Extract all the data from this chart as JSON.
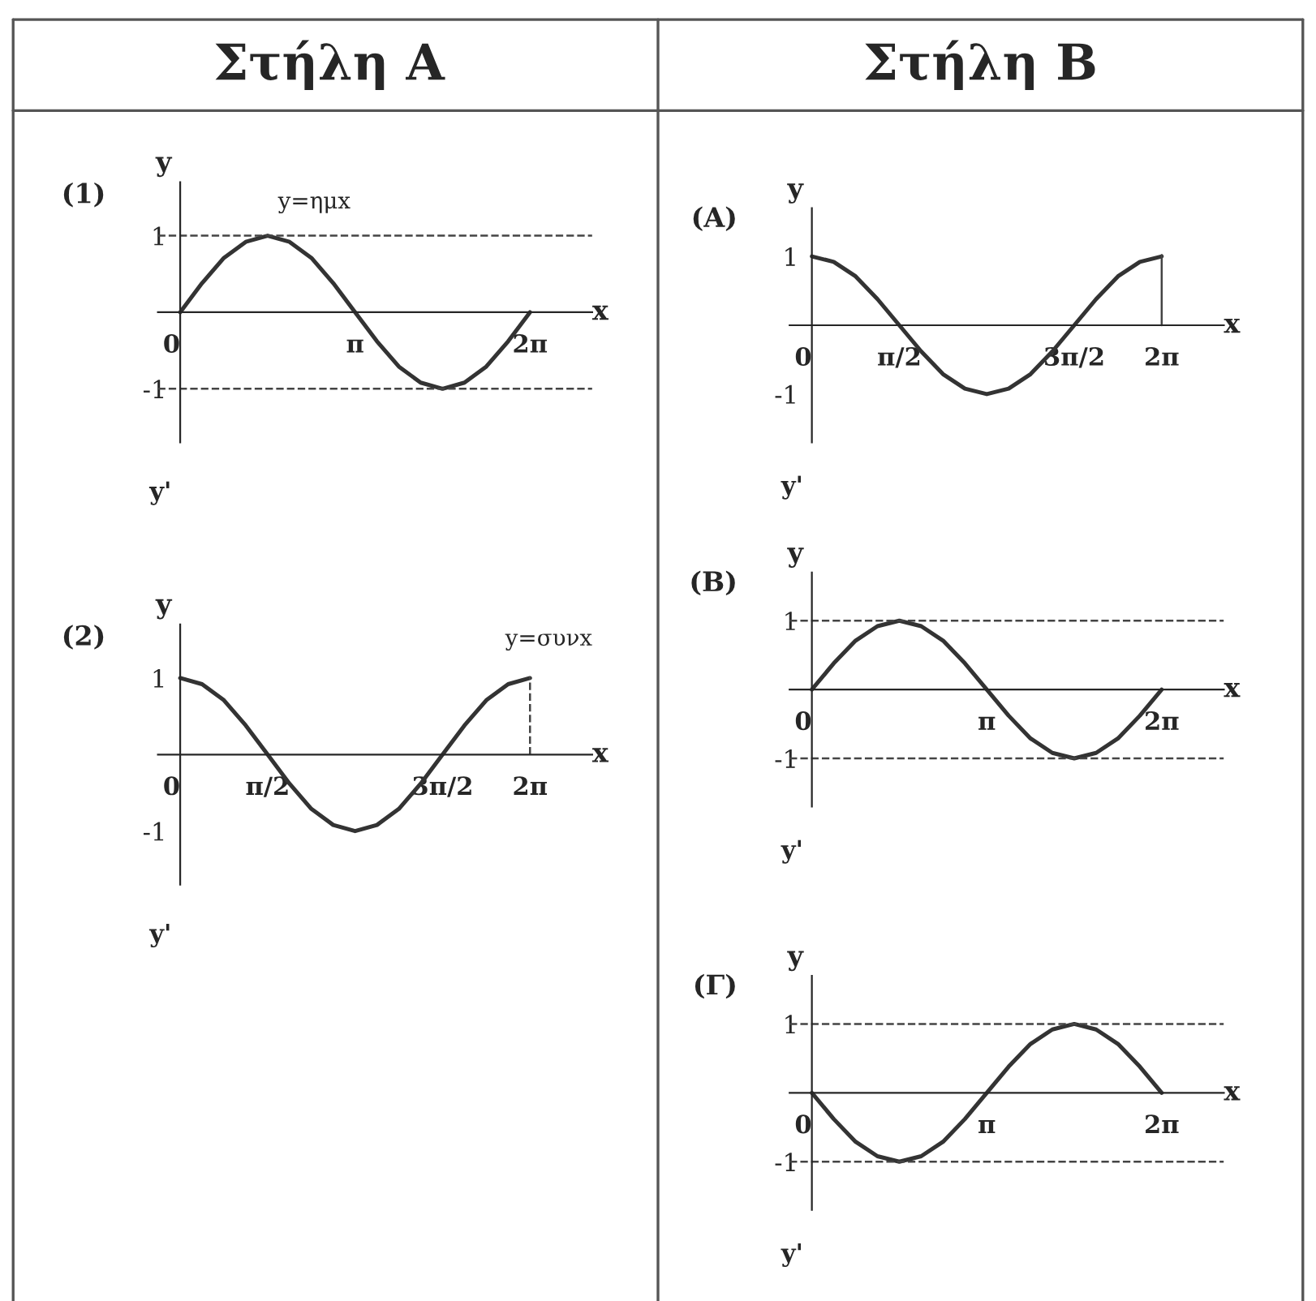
{
  "chart_data": [
    {
      "type": "line",
      "title": "Στήλη Α",
      "subtitle": "(1)",
      "xlabel": "x",
      "ylabel": "y",
      "annotations": [
        "y=ημx",
        "y'"
      ],
      "x": [
        0,
        0.3927,
        0.7854,
        1.1781,
        1.5708,
        1.9635,
        2.3562,
        2.7489,
        3.1416,
        3.5343,
        3.927,
        4.3197,
        4.7124,
        5.1051,
        5.4978,
        5.8905,
        6.2832
      ],
      "series": [
        {
          "color": "#333333",
          "values": [
            0,
            0.38,
            0.71,
            0.92,
            1,
            0.92,
            0.71,
            0.38,
            0,
            -0.38,
            -0.71,
            -0.92,
            -1,
            -0.92,
            -0.71,
            -0.38,
            0
          ]
        }
      ],
      "xlim": [
        -0.4,
        7.4
      ],
      "ylim": [
        -1.7,
        1.7
      ],
      "xticks": [
        {
          "value": 0,
          "label": "0"
        },
        {
          "value": 3.1416,
          "label": "π"
        },
        {
          "value": 6.2832,
          "label": "2π"
        }
      ],
      "yticks": [
        -1,
        1
      ],
      "ref_lines": [
        {
          "axis": "y",
          "value": 1,
          "line_style": "dashed"
        },
        {
          "axis": "y",
          "value": -1,
          "line_style": "dashed"
        }
      ]
    },
    {
      "type": "line",
      "subtitle": "(2)",
      "xlabel": "x",
      "ylabel": "y",
      "annotations": [
        "y=συνx",
        "y'"
      ],
      "x": [
        0,
        0.3927,
        0.7854,
        1.1781,
        1.5708,
        1.9635,
        2.3562,
        2.7489,
        3.1416,
        3.5343,
        3.927,
        4.3197,
        4.7124,
        5.1051,
        5.4978,
        5.8905,
        6.2832
      ],
      "series": [
        {
          "color": "#333333",
          "values": [
            1,
            0.92,
            0.71,
            0.38,
            0,
            -0.38,
            -0.71,
            -0.92,
            -1,
            -0.92,
            -0.71,
            -0.38,
            0,
            0.38,
            0.71,
            0.92,
            1
          ]
        }
      ],
      "xlim": [
        -0.4,
        7.4
      ],
      "ylim": [
        -1.7,
        1.7
      ],
      "xticks": [
        {
          "value": 0,
          "label": "0"
        },
        {
          "value": 1.5708,
          "label": "π/2"
        },
        {
          "value": 4.7124,
          "label": "3π/2"
        },
        {
          "value": 6.2832,
          "label": "2π"
        }
      ],
      "yticks": [
        -1,
        1
      ],
      "ref_lines": [
        {
          "axis": "x",
          "value": 6.2832,
          "line_style": "dashed"
        }
      ]
    },
    {
      "type": "line",
      "title": "Στήλη Β",
      "subtitle": "(A)",
      "xlabel": "x",
      "ylabel": "y",
      "annotations": [
        "y'"
      ],
      "x": [
        0,
        0.3927,
        0.7854,
        1.1781,
        1.5708,
        1.9635,
        2.3562,
        2.7489,
        3.1416,
        3.5343,
        3.927,
        4.3197,
        4.7124,
        5.1051,
        5.4978,
        5.8905,
        6.2832
      ],
      "series": [
        {
          "color": "#333333",
          "values": [
            1,
            0.92,
            0.71,
            0.38,
            0,
            -0.38,
            -0.71,
            -0.92,
            -1,
            -0.92,
            -0.71,
            -0.38,
            0,
            0.38,
            0.71,
            0.92,
            1
          ]
        }
      ],
      "xlim": [
        -0.4,
        7.4
      ],
      "ylim": [
        -1.7,
        1.7
      ],
      "xticks": [
        {
          "value": 0,
          "label": "0"
        },
        {
          "value": 1.5708,
          "label": "π/2"
        },
        {
          "value": 4.7124,
          "label": "3π/2"
        },
        {
          "value": 6.2832,
          "label": "2π"
        }
      ],
      "yticks": [
        -1,
        1
      ],
      "ref_lines": [
        {
          "axis": "x",
          "value": 6.2832,
          "line_style": "solid"
        }
      ]
    },
    {
      "type": "line",
      "subtitle": "(B)",
      "xlabel": "x",
      "ylabel": "y",
      "annotations": [
        "y'"
      ],
      "x": [
        0,
        0.3927,
        0.7854,
        1.1781,
        1.5708,
        1.9635,
        2.3562,
        2.7489,
        3.1416,
        3.5343,
        3.927,
        4.3197,
        4.7124,
        5.1051,
        5.4978,
        5.8905,
        6.2832
      ],
      "series": [
        {
          "color": "#333333",
          "values": [
            0,
            0.38,
            0.71,
            0.92,
            1,
            0.92,
            0.71,
            0.38,
            0,
            -0.38,
            -0.71,
            -0.92,
            -1,
            -0.92,
            -0.71,
            -0.38,
            0
          ]
        }
      ],
      "xlim": [
        -0.4,
        7.4
      ],
      "ylim": [
        -1.7,
        1.7
      ],
      "xticks": [
        {
          "value": 0,
          "label": "0"
        },
        {
          "value": 3.1416,
          "label": "π"
        },
        {
          "value": 6.2832,
          "label": "2π"
        }
      ],
      "yticks": [
        -1,
        1
      ],
      "ref_lines": [
        {
          "axis": "y",
          "value": 1,
          "line_style": "dashed"
        },
        {
          "axis": "y",
          "value": -1,
          "line_style": "dashed"
        }
      ]
    },
    {
      "type": "line",
      "subtitle": "(Γ)",
      "xlabel": "x",
      "ylabel": "y",
      "annotations": [
        "y'"
      ],
      "x": [
        0,
        0.3927,
        0.7854,
        1.1781,
        1.5708,
        1.9635,
        2.3562,
        2.7489,
        3.1416,
        3.5343,
        3.927,
        4.3197,
        4.7124,
        5.1051,
        5.4978,
        5.8905,
        6.2832
      ],
      "series": [
        {
          "color": "#333333",
          "values": [
            0,
            -0.38,
            -0.71,
            -0.92,
            -1,
            -0.92,
            -0.71,
            -0.38,
            0,
            0.38,
            0.71,
            0.92,
            1,
            0.92,
            0.71,
            0.38,
            0
          ]
        }
      ],
      "xlim": [
        -0.4,
        7.4
      ],
      "ylim": [
        -1.7,
        1.7
      ],
      "xticks": [
        {
          "value": 0,
          "label": "0"
        },
        {
          "value": 3.1416,
          "label": "π"
        },
        {
          "value": 6.2832,
          "label": "2π"
        }
      ],
      "yticks": [
        -1,
        1
      ],
      "ref_lines": [
        {
          "axis": "y",
          "value": 1,
          "line_style": "dashed"
        },
        {
          "axis": "y",
          "value": -1,
          "line_style": "dashed"
        }
      ]
    }
  ]
}
